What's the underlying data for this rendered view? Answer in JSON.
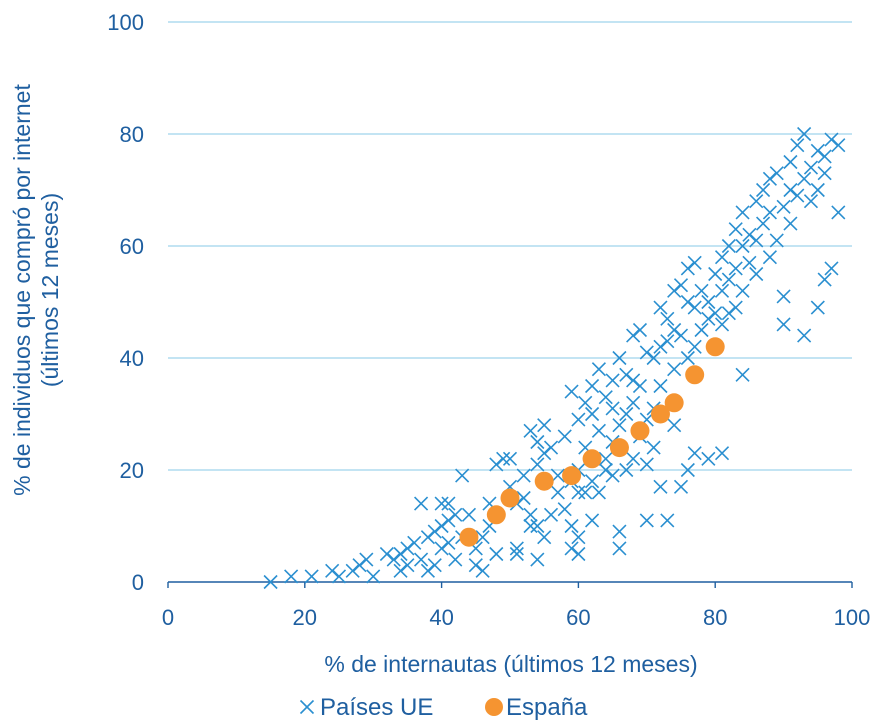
{
  "chart_data": {
    "type": "scatter",
    "xlabel": "% de internautas (últimos 12 meses)",
    "ylabel": [
      "% de individuos que compró por internet",
      "(últimos 12 meses)"
    ],
    "xlim": [
      0,
      100
    ],
    "ylim": [
      0,
      100
    ],
    "xticks": [
      "0",
      "20",
      "40",
      "60",
      "80",
      "100"
    ],
    "yticks": [
      "0",
      "20",
      "40",
      "60",
      "80",
      "100"
    ],
    "grid": "horizontal",
    "legend_position": "bottom",
    "colors": {
      "ue": "#2a8fd0",
      "espana": "#f59431",
      "grid": "#9fd3ec",
      "axis": "#1f5fa0"
    },
    "series": [
      {
        "name": "Países UE",
        "marker": "x-icon",
        "points": [
          [
            15,
            0
          ],
          [
            18,
            1
          ],
          [
            21,
            1
          ],
          [
            24,
            2
          ],
          [
            25,
            1
          ],
          [
            27,
            2
          ],
          [
            28,
            3
          ],
          [
            29,
            4
          ],
          [
            30,
            1
          ],
          [
            32,
            5
          ],
          [
            33,
            4
          ],
          [
            34,
            5
          ],
          [
            34,
            2
          ],
          [
            35,
            6
          ],
          [
            35,
            3
          ],
          [
            36,
            7
          ],
          [
            37,
            4
          ],
          [
            37,
            14
          ],
          [
            38,
            8
          ],
          [
            38,
            2
          ],
          [
            39,
            9
          ],
          [
            39,
            3
          ],
          [
            40,
            10
          ],
          [
            40,
            6
          ],
          [
            40,
            14
          ],
          [
            41,
            11
          ],
          [
            41,
            7
          ],
          [
            41,
            14
          ],
          [
            42,
            12
          ],
          [
            42,
            4
          ],
          [
            43,
            19
          ],
          [
            43,
            8
          ],
          [
            44,
            12
          ],
          [
            45,
            6
          ],
          [
            45,
            3
          ],
          [
            46,
            8
          ],
          [
            46,
            2
          ],
          [
            47,
            14
          ],
          [
            47,
            10
          ],
          [
            48,
            21
          ],
          [
            48,
            5
          ],
          [
            49,
            22
          ],
          [
            50,
            17
          ],
          [
            50,
            22
          ],
          [
            51,
            14
          ],
          [
            51,
            6
          ],
          [
            51,
            5
          ],
          [
            52,
            19
          ],
          [
            52,
            15
          ],
          [
            53,
            12
          ],
          [
            53,
            10
          ],
          [
            53,
            27
          ],
          [
            54,
            25
          ],
          [
            54,
            21
          ],
          [
            54,
            10
          ],
          [
            54,
            4
          ],
          [
            55,
            28
          ],
          [
            55,
            23
          ],
          [
            55,
            8
          ],
          [
            56,
            24
          ],
          [
            56,
            12
          ],
          [
            57,
            19
          ],
          [
            57,
            16
          ],
          [
            58,
            26
          ],
          [
            58,
            13
          ],
          [
            59,
            34
          ],
          [
            59,
            18
          ],
          [
            59,
            10
          ],
          [
            59,
            6
          ],
          [
            60,
            29
          ],
          [
            60,
            20
          ],
          [
            60,
            16
          ],
          [
            60,
            8
          ],
          [
            60,
            5
          ],
          [
            61,
            32
          ],
          [
            61,
            24
          ],
          [
            61,
            16
          ],
          [
            62,
            35
          ],
          [
            62,
            30
          ],
          [
            62,
            18
          ],
          [
            62,
            11
          ],
          [
            63,
            38
          ],
          [
            63,
            27
          ],
          [
            63,
            16
          ],
          [
            64,
            33
          ],
          [
            64,
            20
          ],
          [
            64,
            22
          ],
          [
            65,
            36
          ],
          [
            65,
            31
          ],
          [
            65,
            25
          ],
          [
            65,
            19
          ],
          [
            66,
            40
          ],
          [
            66,
            28
          ],
          [
            66,
            9
          ],
          [
            66,
            6
          ],
          [
            67,
            37
          ],
          [
            67,
            30
          ],
          [
            67,
            20
          ],
          [
            68,
            44
          ],
          [
            68,
            32
          ],
          [
            68,
            36
          ],
          [
            68,
            22
          ],
          [
            69,
            45
          ],
          [
            69,
            35
          ],
          [
            69,
            26
          ],
          [
            70,
            41
          ],
          [
            70,
            29
          ],
          [
            70,
            21
          ],
          [
            70,
            11
          ],
          [
            71,
            40
          ],
          [
            71,
            31
          ],
          [
            71,
            24
          ],
          [
            72,
            49
          ],
          [
            72,
            42
          ],
          [
            72,
            35
          ],
          [
            72,
            17
          ],
          [
            73,
            47
          ],
          [
            73,
            43
          ],
          [
            73,
            11
          ],
          [
            74,
            52
          ],
          [
            74,
            45
          ],
          [
            74,
            38
          ],
          [
            74,
            28
          ],
          [
            75,
            53
          ],
          [
            75,
            44
          ],
          [
            75,
            17
          ],
          [
            76,
            56
          ],
          [
            76,
            50
          ],
          [
            76,
            40
          ],
          [
            76,
            20
          ],
          [
            77,
            57
          ],
          [
            77,
            49
          ],
          [
            77,
            42
          ],
          [
            77,
            23
          ],
          [
            78,
            52
          ],
          [
            78,
            45
          ],
          [
            79,
            50
          ],
          [
            79,
            47
          ],
          [
            79,
            22
          ],
          [
            80,
            55
          ],
          [
            80,
            48
          ],
          [
            80,
            42
          ],
          [
            81,
            58
          ],
          [
            81,
            52
          ],
          [
            81,
            46
          ],
          [
            81,
            23
          ],
          [
            82,
            60
          ],
          [
            82,
            54
          ],
          [
            82,
            48
          ],
          [
            83,
            63
          ],
          [
            83,
            56
          ],
          [
            83,
            49
          ],
          [
            84,
            66
          ],
          [
            84,
            60
          ],
          [
            84,
            52
          ],
          [
            84,
            37
          ],
          [
            85,
            62
          ],
          [
            85,
            57
          ],
          [
            86,
            68
          ],
          [
            86,
            61
          ],
          [
            86,
            55
          ],
          [
            87,
            64
          ],
          [
            87,
            70
          ],
          [
            88,
            66
          ],
          [
            88,
            58
          ],
          [
            88,
            72
          ],
          [
            89,
            73
          ],
          [
            89,
            61
          ],
          [
            90,
            67
          ],
          [
            90,
            51
          ],
          [
            90,
            46
          ],
          [
            91,
            75
          ],
          [
            91,
            70
          ],
          [
            91,
            64
          ],
          [
            92,
            78
          ],
          [
            92,
            69
          ],
          [
            93,
            80
          ],
          [
            93,
            72
          ],
          [
            93,
            44
          ],
          [
            94,
            74
          ],
          [
            94,
            68
          ],
          [
            95,
            77
          ],
          [
            95,
            70
          ],
          [
            95,
            49
          ],
          [
            96,
            76
          ],
          [
            96,
            73
          ],
          [
            96,
            54
          ],
          [
            97,
            79
          ],
          [
            97,
            56
          ],
          [
            98,
            66
          ],
          [
            98,
            78
          ]
        ]
      },
      {
        "name": "España",
        "marker": "circle",
        "points": [
          [
            44,
            8
          ],
          [
            48,
            12
          ],
          [
            50,
            15
          ],
          [
            55,
            18
          ],
          [
            59,
            19
          ],
          [
            62,
            22
          ],
          [
            66,
            24
          ],
          [
            69,
            27
          ],
          [
            72,
            30
          ],
          [
            74,
            32
          ],
          [
            77,
            37
          ],
          [
            80,
            42
          ]
        ]
      }
    ]
  }
}
